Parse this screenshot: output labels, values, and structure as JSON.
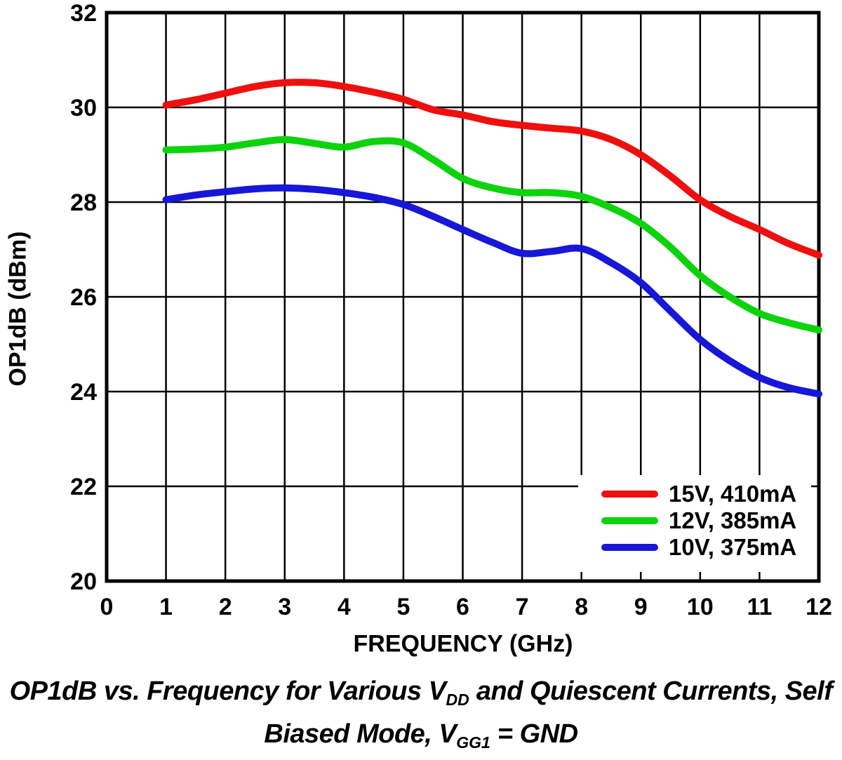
{
  "chart_data": {
    "type": "line",
    "title": "",
    "xlabel": "FREQUENCY (GHz)",
    "ylabel": "OP1dB (dBm)",
    "xlim": [
      0,
      12
    ],
    "ylim": [
      20,
      32
    ],
    "x_ticks": [
      0,
      1,
      2,
      3,
      4,
      5,
      6,
      7,
      8,
      9,
      10,
      11,
      12
    ],
    "y_ticks": [
      20,
      22,
      24,
      26,
      28,
      30,
      32
    ],
    "grid": true,
    "grid_color": "#000000",
    "axis_color": "#000000",
    "legend_position": "lower-right",
    "x": [
      1,
      1.5,
      2,
      2.5,
      3,
      3.5,
      4,
      4.5,
      5,
      5.5,
      6,
      6.5,
      7,
      7.5,
      8,
      8.5,
      9,
      9.5,
      10,
      10.5,
      11,
      11.5,
      12
    ],
    "series": [
      {
        "name": "15V, 410mA",
        "color": "#ee0f0f",
        "values": [
          30.05,
          30.16,
          30.3,
          30.44,
          30.52,
          30.52,
          30.44,
          30.32,
          30.17,
          29.95,
          29.84,
          29.7,
          29.62,
          29.56,
          29.5,
          29.32,
          29.0,
          28.55,
          28.05,
          27.7,
          27.42,
          27.12,
          26.88
        ]
      },
      {
        "name": "12V, 385mA",
        "color": "#0cd30c",
        "values": [
          29.1,
          29.12,
          29.16,
          29.25,
          29.32,
          29.24,
          29.16,
          29.28,
          29.25,
          28.9,
          28.5,
          28.3,
          28.2,
          28.2,
          28.12,
          27.88,
          27.55,
          27.05,
          26.45,
          26.0,
          25.65,
          25.45,
          25.3
        ]
      },
      {
        "name": "10V, 375mA",
        "color": "#1717d8",
        "values": [
          28.05,
          28.15,
          28.22,
          28.28,
          28.3,
          28.27,
          28.2,
          28.1,
          27.95,
          27.7,
          27.42,
          27.15,
          26.92,
          26.96,
          27.02,
          26.72,
          26.3,
          25.7,
          25.1,
          24.65,
          24.3,
          24.08,
          23.95
        ]
      }
    ]
  },
  "caption": {
    "line1_pre": "OP1dB vs. Frequency for Various V",
    "line1_sub": "DD",
    "line1_post": " and Quiescent Currents, Self",
    "line2_pre": "Biased Mode, V",
    "line2_sub": "GG1",
    "line2_post": " = GND"
  }
}
